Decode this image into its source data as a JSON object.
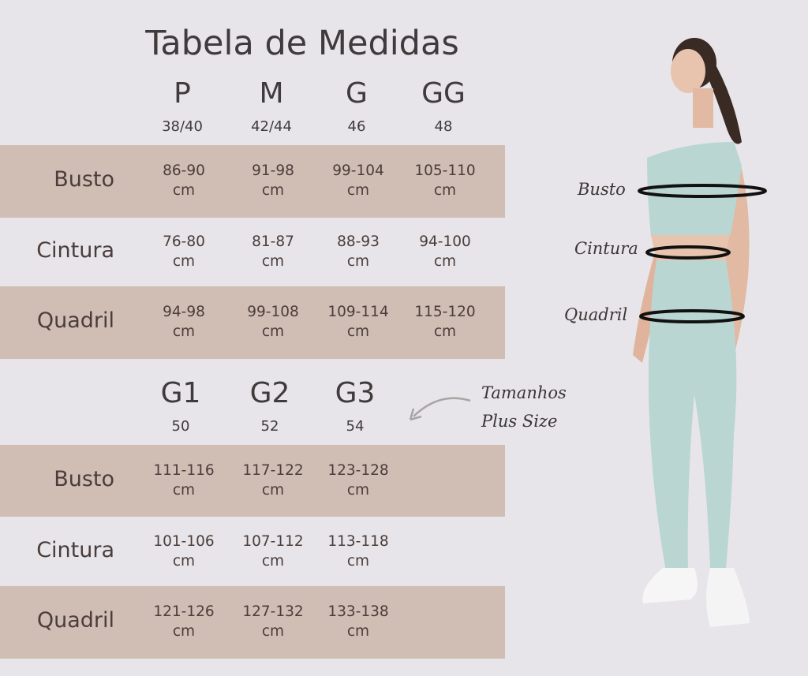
{
  "title": "Tabela de Medidas",
  "unit": "cm",
  "colors": {
    "background": "#e7e5e9",
    "band": "#d0beb4",
    "text": "#4a3d3b",
    "outfit": "#b9d6d2"
  },
  "table_regular": {
    "sizes": [
      {
        "label": "P",
        "number": "38/40"
      },
      {
        "label": "M",
        "number": "42/44"
      },
      {
        "label": "G",
        "number": "46"
      },
      {
        "label": "GG",
        "number": "48"
      }
    ],
    "rows": [
      {
        "label": "Busto",
        "values": [
          "86-90",
          "91-98",
          "99-104",
          "105-110"
        ]
      },
      {
        "label": "Cintura",
        "values": [
          "76-80",
          "81-87",
          "88-93",
          "94-100"
        ]
      },
      {
        "label": "Quadril",
        "values": [
          "94-98",
          "99-108",
          "109-114",
          "115-120"
        ]
      }
    ]
  },
  "table_plus": {
    "sizes": [
      {
        "label": "G1",
        "number": "50"
      },
      {
        "label": "G2",
        "number": "52"
      },
      {
        "label": "G3",
        "number": "54"
      }
    ],
    "rows": [
      {
        "label": "Busto",
        "values": [
          "111-116",
          "117-122",
          "123-128"
        ]
      },
      {
        "label": "Cintura",
        "values": [
          "101-106",
          "107-112",
          "113-118"
        ]
      },
      {
        "label": "Quadril",
        "values": [
          "121-126",
          "127-132",
          "133-138"
        ]
      }
    ]
  },
  "plus_note": {
    "line1": "Tamanhos",
    "line2": "Plus Size",
    "icon": "curved-arrow-left-icon"
  },
  "figure": {
    "labels": {
      "busto": "Busto",
      "cintura": "Cintura",
      "quadril": "Quadril"
    }
  }
}
